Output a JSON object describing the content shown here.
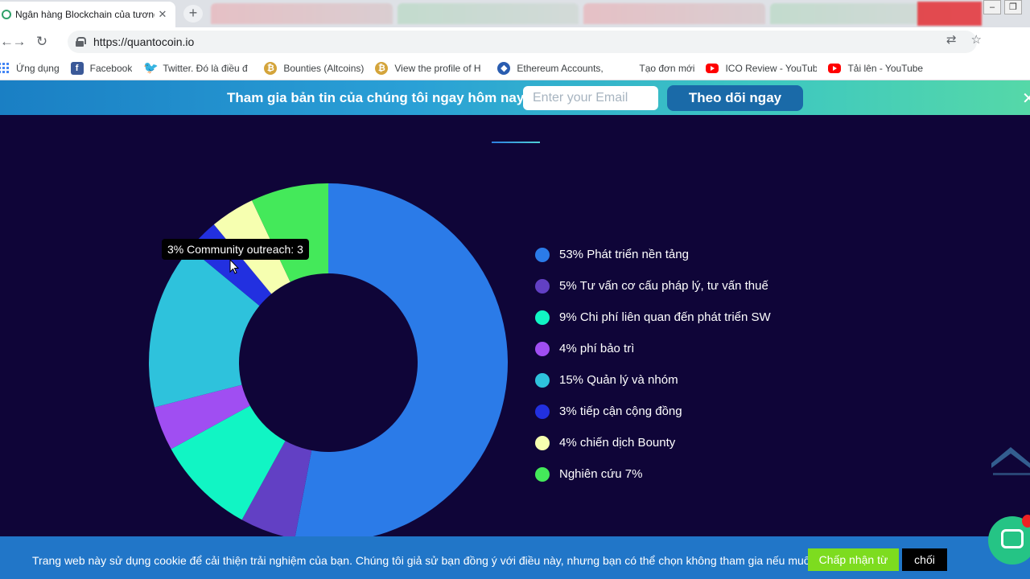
{
  "browser": {
    "active_tab_title": "Ngân hàng Blockchain của tương",
    "url": "https://quantocoin.io",
    "bookmarks": [
      {
        "label": "Ứng dụng",
        "icon": "apps-grid-icon"
      },
      {
        "label": "Facebook",
        "icon": "facebook-icon"
      },
      {
        "label": "Twitter. Đó là điều đ",
        "icon": "twitter-icon"
      },
      {
        "label": "Bounties (Altcoins)",
        "icon": "coin-icon"
      },
      {
        "label": "View the profile of H",
        "icon": "coin-icon"
      },
      {
        "label": "Ethereum Accounts,",
        "icon": "ethereum-icon"
      },
      {
        "label": "Tạo đơn mới",
        "icon": ""
      },
      {
        "label": "ICO Review - YouTub",
        "icon": "youtube-icon"
      },
      {
        "label": "Tải lên - YouTube",
        "icon": "youtube-icon"
      }
    ]
  },
  "newsletter": {
    "text": "Tham gia bản tin của chúng tôi ngay hôm nay",
    "email_placeholder": "Enter your Email",
    "subscribe_label": "Theo dõi ngay"
  },
  "tooltip": {
    "text": "3% Community outreach: 3"
  },
  "chart_data": {
    "type": "pie",
    "subtype": "donut",
    "slices": [
      {
        "label": "53% Phát triển nền tảng",
        "value": 53,
        "color": "#2b7be8"
      },
      {
        "label": "5% Tư vấn cơ cấu pháp lý, tư vấn thuế",
        "value": 5,
        "color": "#6240c4"
      },
      {
        "label": "9% Chi phí liên quan đến phát triển SW",
        "value": 9,
        "color": "#11f5c4"
      },
      {
        "label": "4% phí bảo trì",
        "value": 4,
        "color": "#a04ef2"
      },
      {
        "label": "15% Quản lý và nhóm",
        "value": 15,
        "color": "#2ec2dc"
      },
      {
        "label": "3% tiếp cận cộng đồng",
        "value": 3,
        "color": "#2230e0"
      },
      {
        "label": "4% chiến dịch Bounty",
        "value": 4,
        "color": "#f6ffb0"
      },
      {
        "label": "Nghiên cứu 7%",
        "value": 7,
        "color": "#44e95a"
      }
    ]
  },
  "cookie": {
    "text": "Trang web này sử dụng cookie để cải thiện trải nghiệm của bạn. Chúng tôi giả sử bạn đồng ý với điều này, nhưng bạn có thể chọn không tham gia nếu muốn.",
    "accept_label": "Chấp nhận từ",
    "deny_label": "chối"
  }
}
